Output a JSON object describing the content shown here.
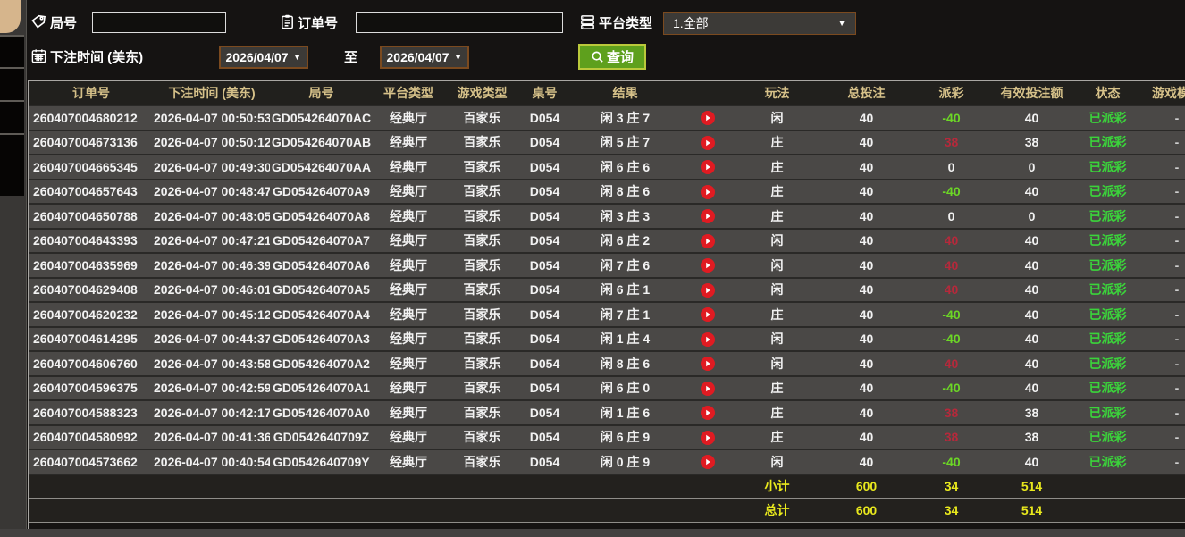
{
  "filters": {
    "round_label": "局号",
    "round_value": "",
    "order_label": "订单号",
    "order_value": "",
    "platform_label": "平台类型",
    "platform_value": "1.全部",
    "bet_time_label": "下注时间 (美东)",
    "date_from": "2026/04/07",
    "to_label": "至",
    "date_to": "2026/04/07",
    "search_label": "查询"
  },
  "icons": {
    "round_field": "tag-icon",
    "order_field": "clipboard-icon",
    "platform_field": "list-icon",
    "bet_time_field": "calendar-icon",
    "search_button": "search-icon",
    "replay": "play-icon",
    "dropdown_arrow": "▼"
  },
  "colors": {
    "header_text": "#d6c189",
    "payout_win_red": "#b5293b",
    "payout_loss_green": "#6cd626",
    "status_green": "#3bd33b",
    "summary_yellow": "#e9e91d",
    "search_button_green": "#5ea01d",
    "dropdown_border_brown": "#7b4a1f",
    "row_background": "#4a4846"
  },
  "table": {
    "columns": [
      "订单号",
      "下注时间 (美东)",
      "局号",
      "平台类型",
      "游戏类型",
      "桌号",
      "结果",
      "",
      "玩法",
      "总投注",
      "派彩",
      "有效投注额",
      "状态",
      "游戏模式"
    ],
    "rows": [
      {
        "order": "260407004680212",
        "time": "2026-04-07 00:50:53",
        "round": "GD054264070AC",
        "platform": "经典厅",
        "game": "百家乐",
        "table": "D054",
        "result": "闲 3 庄 7",
        "bet": "闲",
        "total": "40",
        "payout": "-40",
        "payout_tone": "loss",
        "valid": "40",
        "status": "已派彩",
        "mode": "-"
      },
      {
        "order": "260407004673136",
        "time": "2026-04-07 00:50:12",
        "round": "GD054264070AB",
        "platform": "经典厅",
        "game": "百家乐",
        "table": "D054",
        "result": "闲 5 庄 7",
        "bet": "庄",
        "total": "40",
        "payout": "38",
        "payout_tone": "win",
        "valid": "38",
        "status": "已派彩",
        "mode": "-"
      },
      {
        "order": "260407004665345",
        "time": "2026-04-07 00:49:30",
        "round": "GD054264070AA",
        "platform": "经典厅",
        "game": "百家乐",
        "table": "D054",
        "result": "闲 6 庄 6",
        "bet": "庄",
        "total": "40",
        "payout": "0",
        "payout_tone": "zero",
        "valid": "0",
        "status": "已派彩",
        "mode": "-"
      },
      {
        "order": "260407004657643",
        "time": "2026-04-07 00:48:47",
        "round": "GD054264070A9",
        "platform": "经典厅",
        "game": "百家乐",
        "table": "D054",
        "result": "闲 8 庄 6",
        "bet": "庄",
        "total": "40",
        "payout": "-40",
        "payout_tone": "loss",
        "valid": "40",
        "status": "已派彩",
        "mode": "-"
      },
      {
        "order": "260407004650788",
        "time": "2026-04-07 00:48:05",
        "round": "GD054264070A8",
        "platform": "经典厅",
        "game": "百家乐",
        "table": "D054",
        "result": "闲 3 庄 3",
        "bet": "庄",
        "total": "40",
        "payout": "0",
        "payout_tone": "zero",
        "valid": "0",
        "status": "已派彩",
        "mode": "-"
      },
      {
        "order": "260407004643393",
        "time": "2026-04-07 00:47:21",
        "round": "GD054264070A7",
        "platform": "经典厅",
        "game": "百家乐",
        "table": "D054",
        "result": "闲 6 庄 2",
        "bet": "闲",
        "total": "40",
        "payout": "40",
        "payout_tone": "win",
        "valid": "40",
        "status": "已派彩",
        "mode": "-"
      },
      {
        "order": "260407004635969",
        "time": "2026-04-07 00:46:39",
        "round": "GD054264070A6",
        "platform": "经典厅",
        "game": "百家乐",
        "table": "D054",
        "result": "闲 7 庄 6",
        "bet": "闲",
        "total": "40",
        "payout": "40",
        "payout_tone": "win",
        "valid": "40",
        "status": "已派彩",
        "mode": "-"
      },
      {
        "order": "260407004629408",
        "time": "2026-04-07 00:46:01",
        "round": "GD054264070A5",
        "platform": "经典厅",
        "game": "百家乐",
        "table": "D054",
        "result": "闲 6 庄 1",
        "bet": "闲",
        "total": "40",
        "payout": "40",
        "payout_tone": "win",
        "valid": "40",
        "status": "已派彩",
        "mode": "-"
      },
      {
        "order": "260407004620232",
        "time": "2026-04-07 00:45:12",
        "round": "GD054264070A4",
        "platform": "经典厅",
        "game": "百家乐",
        "table": "D054",
        "result": "闲 7 庄 1",
        "bet": "庄",
        "total": "40",
        "payout": "-40",
        "payout_tone": "loss",
        "valid": "40",
        "status": "已派彩",
        "mode": "-"
      },
      {
        "order": "260407004614295",
        "time": "2026-04-07 00:44:37",
        "round": "GD054264070A3",
        "platform": "经典厅",
        "game": "百家乐",
        "table": "D054",
        "result": "闲 1 庄 4",
        "bet": "闲",
        "total": "40",
        "payout": "-40",
        "payout_tone": "loss",
        "valid": "40",
        "status": "已派彩",
        "mode": "-"
      },
      {
        "order": "260407004606760",
        "time": "2026-04-07 00:43:58",
        "round": "GD054264070A2",
        "platform": "经典厅",
        "game": "百家乐",
        "table": "D054",
        "result": "闲 8 庄 6",
        "bet": "闲",
        "total": "40",
        "payout": "40",
        "payout_tone": "win",
        "valid": "40",
        "status": "已派彩",
        "mode": "-"
      },
      {
        "order": "260407004596375",
        "time": "2026-04-07 00:42:59",
        "round": "GD054264070A1",
        "platform": "经典厅",
        "game": "百家乐",
        "table": "D054",
        "result": "闲 6 庄 0",
        "bet": "庄",
        "total": "40",
        "payout": "-40",
        "payout_tone": "loss",
        "valid": "40",
        "status": "已派彩",
        "mode": "-"
      },
      {
        "order": "260407004588323",
        "time": "2026-04-07 00:42:17",
        "round": "GD054264070A0",
        "platform": "经典厅",
        "game": "百家乐",
        "table": "D054",
        "result": "闲 1 庄 6",
        "bet": "庄",
        "total": "40",
        "payout": "38",
        "payout_tone": "win",
        "valid": "38",
        "status": "已派彩",
        "mode": "-"
      },
      {
        "order": "260407004580992",
        "time": "2026-04-07 00:41:36",
        "round": "GD0542640709Z",
        "platform": "经典厅",
        "game": "百家乐",
        "table": "D054",
        "result": "闲 6 庄 9",
        "bet": "庄",
        "total": "40",
        "payout": "38",
        "payout_tone": "win",
        "valid": "38",
        "status": "已派彩",
        "mode": "-"
      },
      {
        "order": "260407004573662",
        "time": "2026-04-07 00:40:54",
        "round": "GD0542640709Y",
        "platform": "经典厅",
        "game": "百家乐",
        "table": "D054",
        "result": "闲 0 庄 9",
        "bet": "闲",
        "total": "40",
        "payout": "-40",
        "payout_tone": "loss",
        "valid": "40",
        "status": "已派彩",
        "mode": "-"
      }
    ],
    "subtotal": {
      "label": "小计",
      "total": "600",
      "payout": "34",
      "valid": "514"
    },
    "grand_total": {
      "label": "总计",
      "total": "600",
      "payout": "34",
      "valid": "514"
    }
  }
}
